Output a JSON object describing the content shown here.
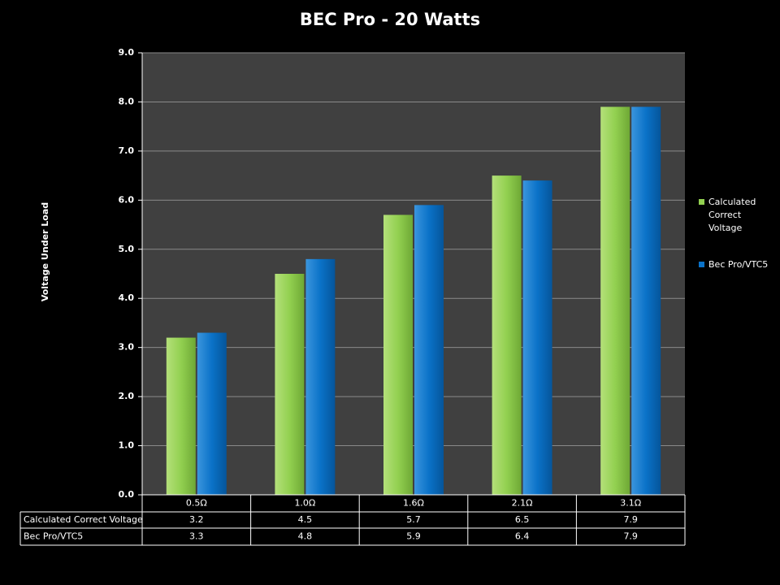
{
  "chart_data": {
    "type": "bar",
    "title": "BEC Pro - 20 Watts",
    "y_label": "Voltage Under Load",
    "categories": [
      "0.5Ω",
      "1.0Ω",
      "1.6Ω",
      "2.1Ω",
      "3.1Ω"
    ],
    "series": [
      {
        "name": "Calculated Correct Voltage",
        "color": "#92d050",
        "values": [
          3.2,
          4.5,
          5.7,
          6.5,
          7.9
        ]
      },
      {
        "name": "Bec Pro/VTC5",
        "color": "#0a72c8",
        "values": [
          3.3,
          4.8,
          5.9,
          6.4,
          7.9
        ]
      }
    ],
    "ylim": [
      0,
      9
    ],
    "yticks": [
      {
        "value": 0,
        "label": "0.0"
      },
      {
        "value": 1,
        "label": "1.0"
      },
      {
        "value": 2,
        "label": "2.0"
      },
      {
        "value": 3,
        "label": "3.0"
      },
      {
        "value": 4,
        "label": "4.0"
      },
      {
        "value": 5,
        "label": "5.0"
      },
      {
        "value": 6,
        "label": "6.0"
      },
      {
        "value": 7,
        "label": "7.0"
      },
      {
        "value": 8,
        "label": "8.0"
      },
      {
        "value": 9,
        "label": "9.0"
      }
    ],
    "grid": true,
    "legend": "right",
    "data_table": true
  }
}
